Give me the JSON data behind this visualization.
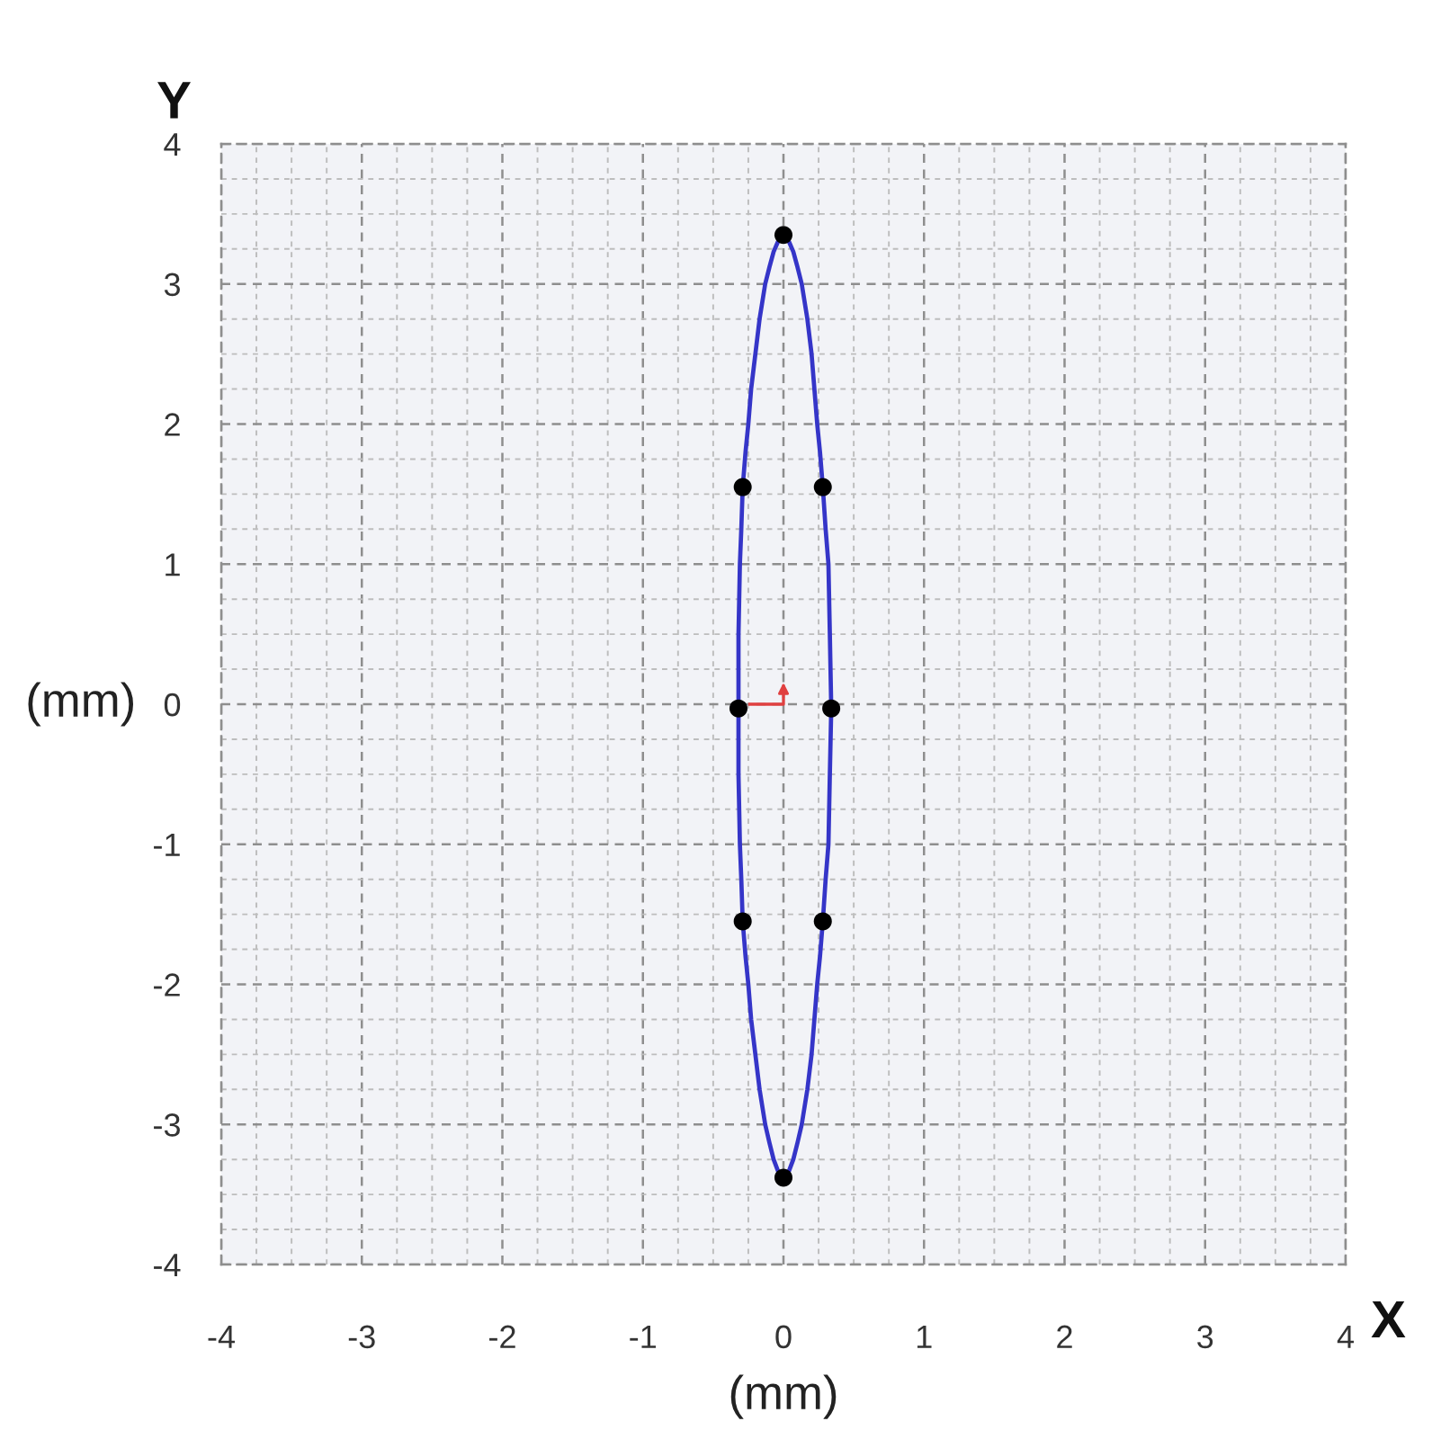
{
  "chart_data": {
    "type": "line",
    "xlabel": "(mm)",
    "ylabel": "(mm)",
    "annotations": [
      "Y",
      "X"
    ],
    "xlim": [
      -4,
      4
    ],
    "ylim": [
      -4,
      4
    ],
    "xticks": [
      -4,
      -3,
      -2,
      -1,
      0,
      1,
      2,
      3,
      4
    ],
    "yticks": [
      -4,
      -3,
      -2,
      -1,
      0,
      1,
      2,
      3,
      4
    ],
    "grid": true,
    "series": [
      {
        "color": "#3535c8",
        "marker": "none",
        "line_style": "solid",
        "x": [
          -0.32,
          -0.32,
          -0.31,
          -0.3,
          -0.29,
          -0.27,
          -0.25,
          -0.23,
          -0.2,
          -0.17,
          -0.13,
          -0.1,
          -0.07,
          -0.04,
          0,
          0.04,
          0.07,
          0.1,
          0.13,
          0.17,
          0.2,
          0.22,
          0.24,
          0.26,
          0.28,
          0.3,
          0.32,
          0.33,
          0.34
        ],
        "values": [
          -0.03,
          0.5,
          1.0,
          1.25,
          1.55,
          1.8,
          2.0,
          2.25,
          2.5,
          2.75,
          3.0,
          3.12,
          3.23,
          3.3,
          3.35,
          3.3,
          3.23,
          3.12,
          3.0,
          2.75,
          2.5,
          2.25,
          2.0,
          1.8,
          1.55,
          1.25,
          1.0,
          0.5,
          -0.03
        ]
      },
      {
        "color": "#3535c8",
        "marker": "none",
        "line_style": "solid",
        "x": [
          -0.32,
          -0.32,
          -0.31,
          -0.3,
          -0.29,
          -0.27,
          -0.25,
          -0.23,
          -0.2,
          -0.17,
          -0.13,
          -0.1,
          -0.07,
          -0.04,
          0,
          0.04,
          0.07,
          0.1,
          0.13,
          0.17,
          0.2,
          0.22,
          0.24,
          0.26,
          0.28,
          0.3,
          0.32,
          0.33,
          0.34
        ],
        "values": [
          -0.03,
          -0.5,
          -1.0,
          -1.25,
          -1.55,
          -1.8,
          -2.0,
          -2.25,
          -2.5,
          -2.75,
          -3.0,
          -3.13,
          -3.25,
          -3.33,
          -3.38,
          -3.33,
          -3.25,
          -3.13,
          -3.0,
          -2.75,
          -2.5,
          -2.25,
          -2.0,
          -1.8,
          -1.55,
          -1.25,
          -1.0,
          -0.5,
          -0.03
        ]
      },
      {
        "type": "scatter",
        "color": "#000000",
        "marker": "circle",
        "x": [
          0,
          -0.29,
          0.28,
          -0.32,
          0.34,
          -0.29,
          0.28,
          0
        ],
        "values": [
          3.35,
          1.55,
          1.55,
          -0.03,
          -0.03,
          -1.55,
          -1.55,
          -3.38
        ]
      }
    ]
  }
}
